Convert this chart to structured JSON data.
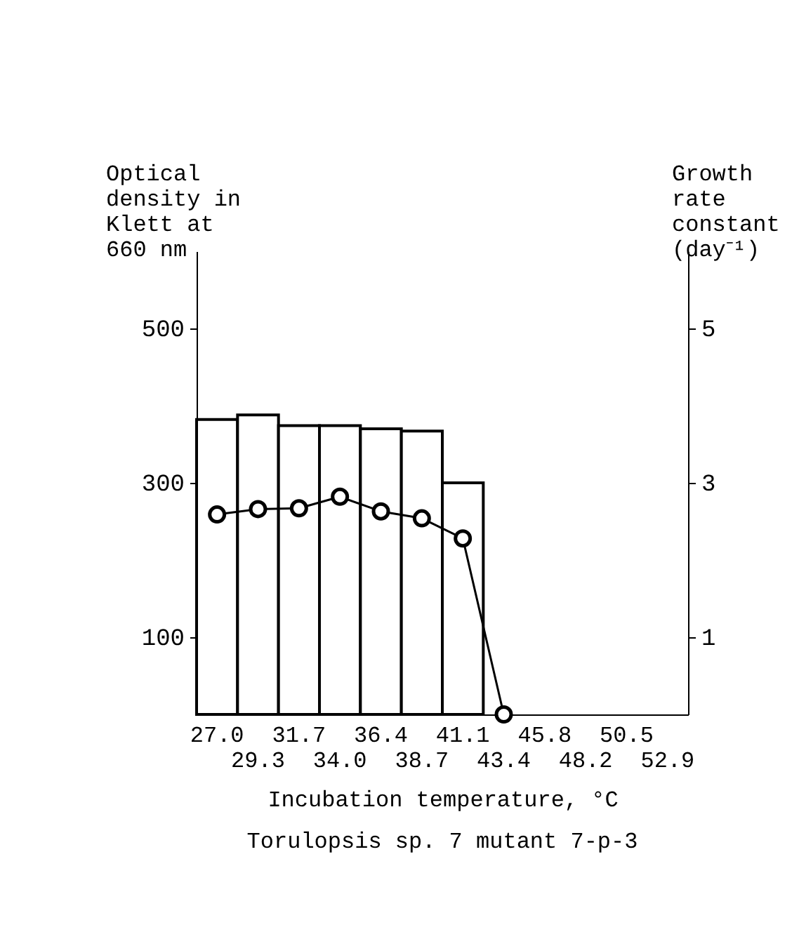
{
  "chart_data": {
    "type": "bar",
    "categories": [
      "27.0",
      "29.3",
      "31.7",
      "34.0",
      "36.4",
      "38.7",
      "41.1",
      "43.4",
      "45.8",
      "48.2",
      "50.5",
      "52.9"
    ],
    "xlabel": "Incubation temperature, °C",
    "ylabel": "Optical density in Klett at 660 nm",
    "y2label": "Growth rate constant (day⁻¹)",
    "annotations": [
      "Torulopsis sp. 7 mutant 7-p-3"
    ],
    "series": [
      {
        "color": "#000000",
        "values": [
          382,
          388,
          374,
          374,
          370,
          367,
          300,
          null,
          null,
          null,
          null,
          null
        ]
      },
      {
        "type": "line",
        "axis": "y2",
        "color": "#000000",
        "marker": "circle",
        "line_style": "solid",
        "values": [
          2.59,
          2.66,
          2.67,
          2.82,
          2.63,
          2.54,
          2.28,
          0,
          null,
          null,
          null,
          null
        ]
      }
    ],
    "ylim": [
      0,
      600
    ],
    "yticks": [
      100,
      300,
      500
    ],
    "y2lim": [
      0,
      6
    ],
    "y2ticks": [
      1,
      3,
      5
    ],
    "grid": false
  }
}
